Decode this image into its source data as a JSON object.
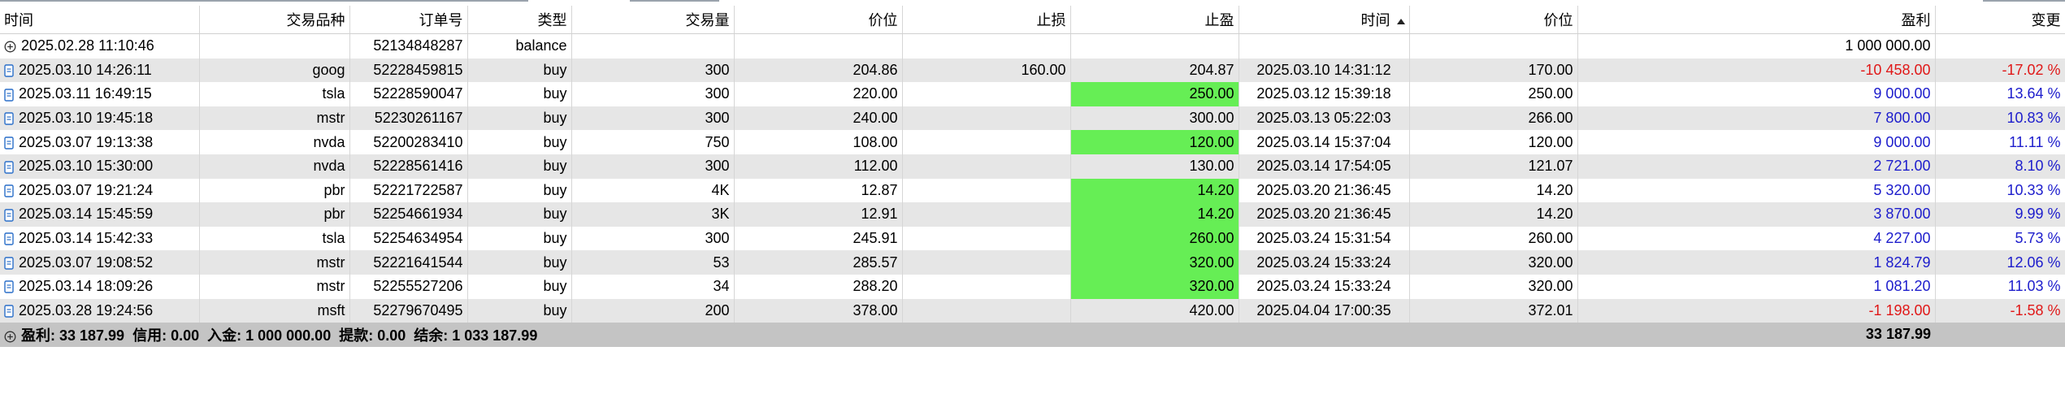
{
  "columns": {
    "time": "时间",
    "symbol": "交易品种",
    "order": "订单号",
    "type": "类型",
    "volume": "交易量",
    "price": "价位",
    "sl": "止损",
    "tp": "止盈",
    "close_time": "时间",
    "close_price": "价位",
    "profit": "盈利",
    "change": "变更"
  },
  "balance_row": {
    "time": "2025.02.28 11:10:46",
    "order": "52134848287",
    "type": "balance",
    "profit": "1 000 000.00",
    "icon": "plus-circle-icon"
  },
  "rows": [
    {
      "time": "2025.03.10 14:26:11",
      "symbol": "goog",
      "order": "52228459815",
      "type": "buy",
      "volume": "300",
      "price": "204.86",
      "sl": "160.00",
      "tp": "204.87",
      "tp_hit": false,
      "close_time": "2025.03.10 14:31:12",
      "close_price": "170.00",
      "profit": "-10 458.00",
      "change": "-17.02 %",
      "positive": false
    },
    {
      "time": "2025.03.11 16:49:15",
      "symbol": "tsla",
      "order": "52228590047",
      "type": "buy",
      "volume": "300",
      "price": "220.00",
      "sl": "",
      "tp": "250.00",
      "tp_hit": true,
      "close_time": "2025.03.12 15:39:18",
      "close_price": "250.00",
      "profit": "9 000.00",
      "change": "13.64 %",
      "positive": true
    },
    {
      "time": "2025.03.10 19:45:18",
      "symbol": "mstr",
      "order": "52230261167",
      "type": "buy",
      "volume": "300",
      "price": "240.00",
      "sl": "",
      "tp": "300.00",
      "tp_hit": false,
      "close_time": "2025.03.13 05:22:03",
      "close_price": "266.00",
      "profit": "7 800.00",
      "change": "10.83 %",
      "positive": true
    },
    {
      "time": "2025.03.07 19:13:38",
      "symbol": "nvda",
      "order": "52200283410",
      "type": "buy",
      "volume": "750",
      "price": "108.00",
      "sl": "",
      "tp": "120.00",
      "tp_hit": true,
      "close_time": "2025.03.14 15:37:04",
      "close_price": "120.00",
      "profit": "9 000.00",
      "change": "11.11 %",
      "positive": true
    },
    {
      "time": "2025.03.10 15:30:00",
      "symbol": "nvda",
      "order": "52228561416",
      "type": "buy",
      "volume": "300",
      "price": "112.00",
      "sl": "",
      "tp": "130.00",
      "tp_hit": false,
      "close_time": "2025.03.14 17:54:05",
      "close_price": "121.07",
      "profit": "2 721.00",
      "change": "8.10 %",
      "positive": true
    },
    {
      "time": "2025.03.07 19:21:24",
      "symbol": "pbr",
      "order": "52221722587",
      "type": "buy",
      "volume": "4K",
      "price": "12.87",
      "sl": "",
      "tp": "14.20",
      "tp_hit": true,
      "close_time": "2025.03.20 21:36:45",
      "close_price": "14.20",
      "profit": "5 320.00",
      "change": "10.33 %",
      "positive": true
    },
    {
      "time": "2025.03.14 15:45:59",
      "symbol": "pbr",
      "order": "52254661934",
      "type": "buy",
      "volume": "3K",
      "price": "12.91",
      "sl": "",
      "tp": "14.20",
      "tp_hit": true,
      "close_time": "2025.03.20 21:36:45",
      "close_price": "14.20",
      "profit": "3 870.00",
      "change": "9.99 %",
      "positive": true
    },
    {
      "time": "2025.03.14 15:42:33",
      "symbol": "tsla",
      "order": "52254634954",
      "type": "buy",
      "volume": "300",
      "price": "245.91",
      "sl": "",
      "tp": "260.00",
      "tp_hit": true,
      "close_time": "2025.03.24 15:31:54",
      "close_price": "260.00",
      "profit": "4 227.00",
      "change": "5.73 %",
      "positive": true
    },
    {
      "time": "2025.03.07 19:08:52",
      "symbol": "mstr",
      "order": "52221641544",
      "type": "buy",
      "volume": "53",
      "price": "285.57",
      "sl": "",
      "tp": "320.00",
      "tp_hit": true,
      "close_time": "2025.03.24 15:33:24",
      "close_price": "320.00",
      "profit": "1 824.79",
      "change": "12.06 %",
      "positive": true
    },
    {
      "time": "2025.03.14 18:09:26",
      "symbol": "mstr",
      "order": "52255527206",
      "type": "buy",
      "volume": "34",
      "price": "288.20",
      "sl": "",
      "tp": "320.00",
      "tp_hit": true,
      "close_time": "2025.03.24 15:33:24",
      "close_price": "320.00",
      "profit": "1 081.20",
      "change": "11.03 %",
      "positive": true
    },
    {
      "time": "2025.03.28 19:24:56",
      "symbol": "msft",
      "order": "52279670495",
      "type": "buy",
      "volume": "200",
      "price": "378.00",
      "sl": "",
      "tp": "420.00",
      "tp_hit": false,
      "close_time": "2025.04.04 17:00:35",
      "close_price": "372.01",
      "profit": "-1 198.00",
      "change": "-1.58 %",
      "positive": false
    }
  ],
  "summary": {
    "text": "盈利: 33 187.99  信用: 0.00  入金: 1 000 000.00  提款: 0.00  结余: 1 033 187.99",
    "profit": "33 187.99",
    "icon": "plus-circle-icon"
  },
  "colors": {
    "tp_hit_bg": "#66ee55",
    "positive": "#1c1ccc",
    "negative": "#e01818",
    "alt_row": "#e6e6e6",
    "summary_bg": "#c4c4c4"
  }
}
